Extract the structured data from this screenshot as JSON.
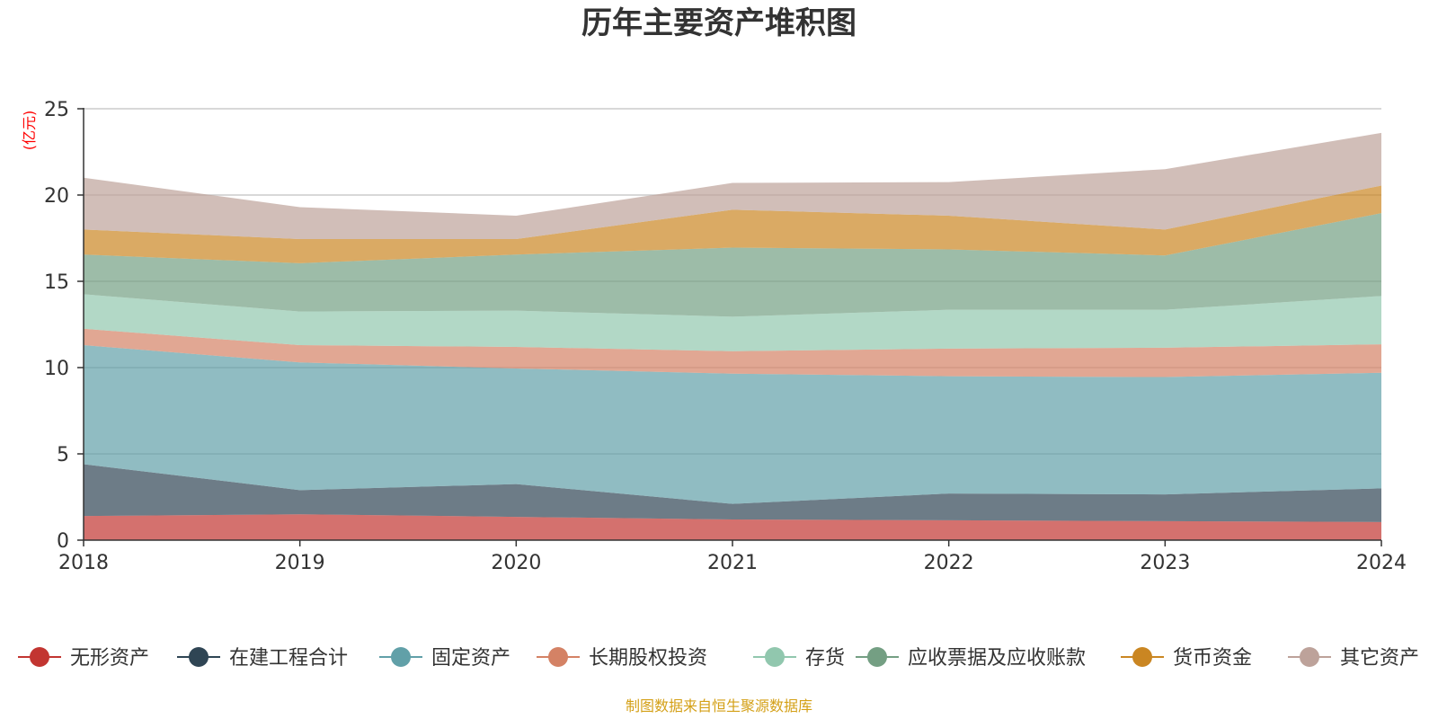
{
  "chart_data": {
    "type": "area",
    "stacked": true,
    "title": "历年主要资产堆积图",
    "unit_label": "(亿元)",
    "x": [
      "2018",
      "2019",
      "2020",
      "2021",
      "2022",
      "2023",
      "2024"
    ],
    "ylim": [
      0,
      25
    ],
    "yticks": [
      "0",
      "5",
      "10",
      "15",
      "20",
      "25"
    ],
    "grid": true,
    "legend_position": "bottom",
    "series": [
      {
        "name": "无形资产",
        "color": "#c23531",
        "legend_color": "#c23531",
        "values": [
          1.4,
          1.5,
          1.35,
          1.2,
          1.15,
          1.1,
          1.05
        ]
      },
      {
        "name": "在建工程合计",
        "color": "#2f4554",
        "legend_color": "#2f4554",
        "values": [
          3.0,
          1.4,
          1.9,
          0.9,
          1.55,
          1.55,
          1.95
        ]
      },
      {
        "name": "固定资产",
        "color": "#61a0a8",
        "legend_color": "#61a0a8",
        "values": [
          6.9,
          7.4,
          6.7,
          7.55,
          6.8,
          6.8,
          6.7
        ]
      },
      {
        "name": "长期股权投资",
        "color": "#d48265",
        "legend_color": "#d48265",
        "values": [
          0.95,
          1.0,
          1.25,
          1.3,
          1.6,
          1.7,
          1.65
        ]
      },
      {
        "name": "存货",
        "color": "#91c7ae",
        "legend_color": "#91c7ae",
        "values": [
          2.0,
          1.95,
          2.1,
          2.0,
          2.25,
          2.2,
          2.8
        ]
      },
      {
        "name": "应收票据及应收账款",
        "color": "#749f83",
        "legend_color": "#749f83",
        "values": [
          2.3,
          2.8,
          3.25,
          4.0,
          3.5,
          3.15,
          4.8
        ]
      },
      {
        "name": "货币资金",
        "color": "#ca8622",
        "legend_color": "#ca8622",
        "values": [
          1.45,
          1.4,
          0.9,
          2.2,
          1.95,
          1.5,
          1.6
        ]
      },
      {
        "name": "其它资产",
        "color": "#bda29a",
        "legend_color": "#bda29a",
        "values": [
          3.0,
          1.85,
          1.35,
          1.55,
          1.95,
          3.5,
          3.05
        ]
      }
    ],
    "source_text": "制图数据来自恒生聚源数据库",
    "colors": {
      "unit_label": "#ff0000",
      "source_text": "#d4a017",
      "axis": "#333333",
      "grid": "#cccccc"
    }
  }
}
